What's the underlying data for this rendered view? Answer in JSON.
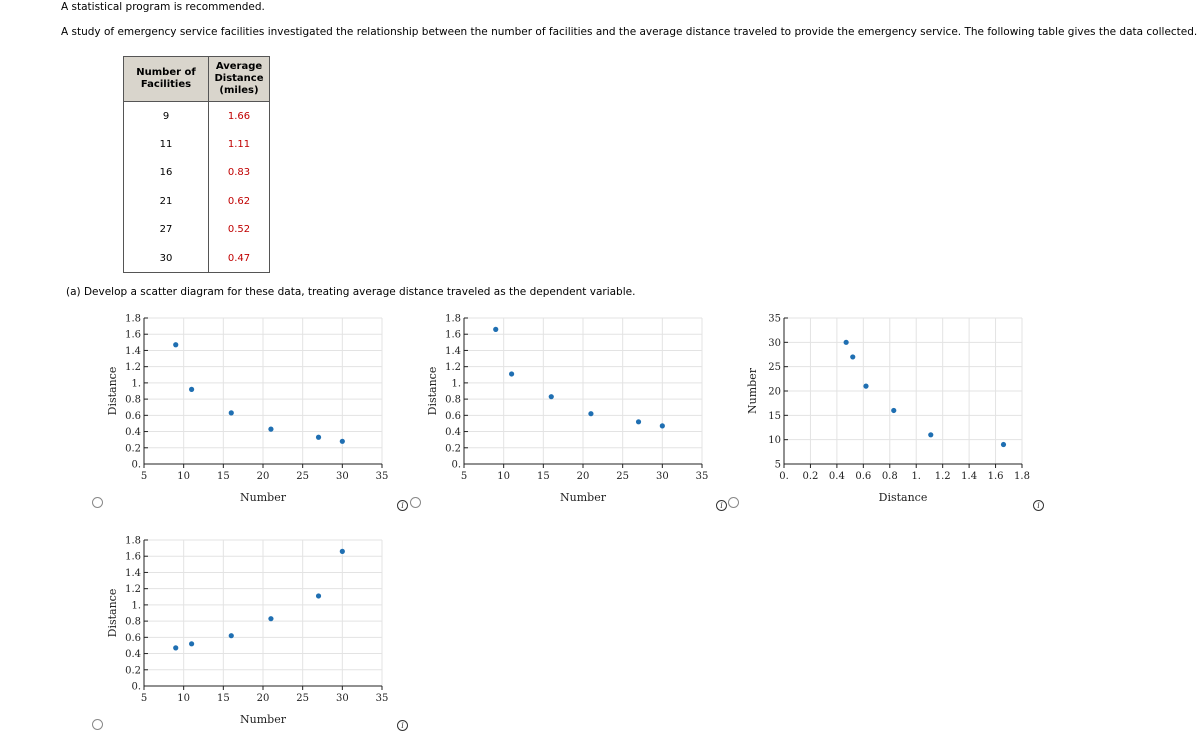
{
  "intro": "A statistical program is recommended.",
  "prompt": "A study of emergency service facilities investigated the relationship between the number of facilities and the average distance traveled to provide the emergency service. The following table gives the data collected.",
  "table": {
    "headers": [
      "Number of Facilities",
      "Average Distance (miles)"
    ],
    "rows": [
      {
        "facilities": "9",
        "distance": "1.66"
      },
      {
        "facilities": "11",
        "distance": "1.11"
      },
      {
        "facilities": "16",
        "distance": "0.83"
      },
      {
        "facilities": "21",
        "distance": "0.62"
      },
      {
        "facilities": "27",
        "distance": "0.52"
      },
      {
        "facilities": "30",
        "distance": "0.47"
      }
    ]
  },
  "part_a": "(a)  Develop a scatter diagram for these data, treating average distance traveled as the dependent variable.",
  "colors": {
    "point": "#1f6fb2",
    "grid": "#e3e3e3",
    "answer": "#c00000"
  },
  "icons": {
    "option": "radio-icon",
    "info": "info-icon"
  },
  "chart_data": [
    {
      "type": "scatter",
      "title": "",
      "xlabel": "Number",
      "ylabel": "Distance",
      "xlim": [
        5,
        35
      ],
      "ylim": [
        0,
        1.8
      ],
      "xticks": [
        "5",
        "10",
        "15",
        "20",
        "25",
        "30",
        "35"
      ],
      "yticks": [
        "0.",
        "0.2",
        "0.4",
        "0.6",
        "0.8",
        "1.",
        "1.2",
        "1.4",
        "1.6",
        "1.8"
      ],
      "grid": true,
      "x": [
        9,
        11,
        16,
        21,
        27,
        30
      ],
      "y": [
        1.47,
        0.92,
        0.63,
        0.43,
        0.33,
        0.28
      ]
    },
    {
      "type": "scatter",
      "title": "",
      "xlabel": "Number",
      "ylabel": "Distance",
      "xlim": [
        5,
        35
      ],
      "ylim": [
        0,
        1.8
      ],
      "xticks": [
        "5",
        "10",
        "15",
        "20",
        "25",
        "30",
        "35"
      ],
      "yticks": [
        "0.",
        "0.2",
        "0.4",
        "0.6",
        "0.8",
        "1.",
        "1.2",
        "1.4",
        "1.6",
        "1.8"
      ],
      "grid": true,
      "x": [
        9,
        11,
        16,
        21,
        27,
        30
      ],
      "y": [
        1.66,
        1.11,
        0.83,
        0.62,
        0.52,
        0.47
      ]
    },
    {
      "type": "scatter",
      "title": "",
      "xlabel": "Distance",
      "ylabel": "Number",
      "xlim": [
        0,
        1.8
      ],
      "ylim": [
        5,
        35
      ],
      "xticks": [
        "0.",
        "0.2",
        "0.4",
        "0.6",
        "0.8",
        "1.",
        "1.2",
        "1.4",
        "1.6",
        "1.8"
      ],
      "yticks": [
        "5",
        "10",
        "15",
        "20",
        "25",
        "30",
        "35"
      ],
      "grid": true,
      "x": [
        0.47,
        0.52,
        0.62,
        0.83,
        1.11,
        1.66
      ],
      "y": [
        30,
        27,
        21,
        16,
        11,
        9
      ]
    },
    {
      "type": "scatter",
      "title": "",
      "xlabel": "Number",
      "ylabel": "Distance",
      "xlim": [
        5,
        35
      ],
      "ylim": [
        0,
        1.8
      ],
      "xticks": [
        "5",
        "10",
        "15",
        "20",
        "25",
        "30",
        "35"
      ],
      "yticks": [
        "0.",
        "0.2",
        "0.4",
        "0.6",
        "0.8",
        "1.",
        "1.2",
        "1.4",
        "1.6",
        "1.8"
      ],
      "grid": true,
      "x": [
        9,
        11,
        16,
        21,
        27,
        30
      ],
      "y": [
        0.47,
        0.52,
        0.62,
        0.83,
        1.11,
        1.66
      ]
    }
  ]
}
